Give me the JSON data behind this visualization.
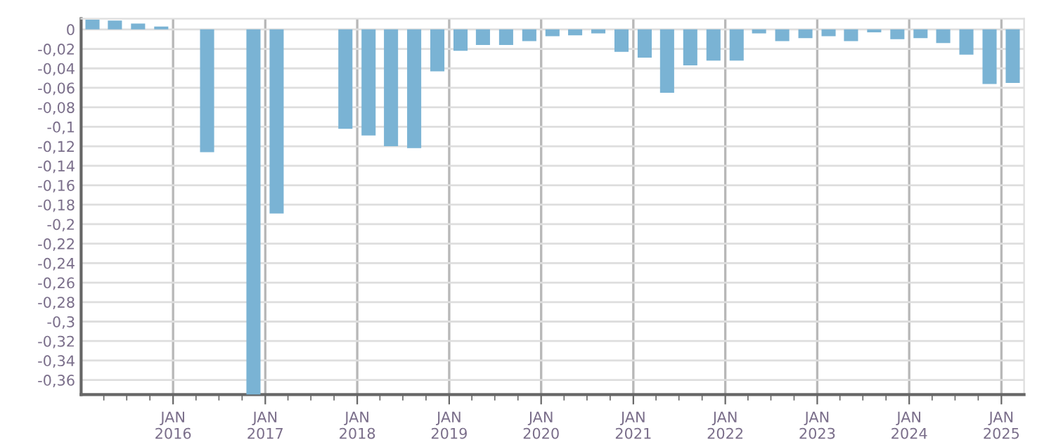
{
  "chart_data": {
    "type": "bar",
    "x": [
      "2015-02-15",
      "2015-05-15",
      "2015-08-15",
      "2015-11-15",
      "2016-05-15",
      "2016-11-15",
      "2017-02-15",
      "2017-11-15",
      "2018-02-15",
      "2018-05-15",
      "2018-08-15",
      "2018-11-15",
      "2019-02-15",
      "2019-05-15",
      "2019-08-15",
      "2019-11-15",
      "2020-02-15",
      "2020-05-15",
      "2020-08-15",
      "2020-11-15",
      "2021-02-15",
      "2021-05-15",
      "2021-08-15",
      "2021-11-15",
      "2022-02-15",
      "2022-05-15",
      "2022-08-15",
      "2022-11-15",
      "2023-02-15",
      "2023-05-15",
      "2023-08-15",
      "2023-11-15",
      "2024-02-15",
      "2024-05-15",
      "2024-08-15",
      "2024-11-15",
      "2025-02-15"
    ],
    "values": [
      0.01,
      0.009,
      0.006,
      0.003,
      -0.126,
      -0.375,
      -0.189,
      -0.102,
      -0.109,
      -0.12,
      -0.122,
      -0.043,
      -0.022,
      -0.016,
      -0.016,
      -0.012,
      -0.007,
      -0.006,
      -0.004,
      -0.023,
      -0.029,
      -0.065,
      -0.037,
      -0.032,
      -0.032,
      -0.004,
      -0.012,
      -0.009,
      -0.007,
      -0.012,
      -0.003,
      -0.01,
      -0.009,
      -0.014,
      -0.026,
      -0.056,
      -0.055
    ],
    "color": "#7ab3d4",
    "xlim": [
      "2015-01-01",
      "2025-04-01"
    ],
    "ylim": [
      -0.375,
      0.011
    ],
    "xticks": [
      {
        "value": "2015-04-01",
        "label": null
      },
      {
        "value": "2015-07-01",
        "label": null
      },
      {
        "value": "2015-10-01",
        "label": null
      },
      {
        "value": "2016-01-01",
        "label": "JAN\n2016"
      },
      {
        "value": "2016-04-01",
        "label": null
      },
      {
        "value": "2016-07-01",
        "label": null
      },
      {
        "value": "2016-10-01",
        "label": null
      },
      {
        "value": "2017-01-01",
        "label": "JAN\n2017"
      },
      {
        "value": "2017-04-01",
        "label": null
      },
      {
        "value": "2017-07-01",
        "label": null
      },
      {
        "value": "2017-10-01",
        "label": null
      },
      {
        "value": "2018-01-01",
        "label": "JAN\n2018"
      },
      {
        "value": "2018-04-01",
        "label": null
      },
      {
        "value": "2018-07-01",
        "label": null
      },
      {
        "value": "2018-10-01",
        "label": null
      },
      {
        "value": "2019-01-01",
        "label": "JAN\n2019"
      },
      {
        "value": "2019-04-01",
        "label": null
      },
      {
        "value": "2019-07-01",
        "label": null
      },
      {
        "value": "2019-10-01",
        "label": null
      },
      {
        "value": "2020-01-01",
        "label": "JAN\n2020"
      },
      {
        "value": "2020-04-01",
        "label": null
      },
      {
        "value": "2020-07-01",
        "label": null
      },
      {
        "value": "2020-10-01",
        "label": null
      },
      {
        "value": "2021-01-01",
        "label": "JAN\n2021"
      },
      {
        "value": "2021-04-01",
        "label": null
      },
      {
        "value": "2021-07-01",
        "label": null
      },
      {
        "value": "2021-10-01",
        "label": null
      },
      {
        "value": "2022-01-01",
        "label": "JAN\n2022"
      },
      {
        "value": "2022-04-01",
        "label": null
      },
      {
        "value": "2022-07-01",
        "label": null
      },
      {
        "value": "2022-10-01",
        "label": null
      },
      {
        "value": "2023-01-01",
        "label": "JAN\n2023"
      },
      {
        "value": "2023-04-01",
        "label": null
      },
      {
        "value": "2023-07-01",
        "label": null
      },
      {
        "value": "2023-10-01",
        "label": null
      },
      {
        "value": "2024-01-01",
        "label": "JAN\n2024"
      },
      {
        "value": "2024-04-01",
        "label": null
      },
      {
        "value": "2024-07-01",
        "label": null
      },
      {
        "value": "2024-10-01",
        "label": null
      },
      {
        "value": "2025-01-01",
        "label": "JAN\n2025"
      }
    ],
    "yticks": [
      0,
      {
        "value": -0.02,
        "label": "-0,02"
      },
      {
        "value": -0.04,
        "label": "-0,04"
      },
      {
        "value": -0.06,
        "label": "-0,06"
      },
      {
        "value": -0.08,
        "label": "-0,08"
      },
      {
        "value": -0.1,
        "label": "-0,1"
      },
      {
        "value": -0.12,
        "label": "-0,12"
      },
      {
        "value": -0.14,
        "label": "-0,14"
      },
      {
        "value": -0.16,
        "label": "-0,16"
      },
      {
        "value": -0.18,
        "label": "-0,18"
      },
      {
        "value": -0.2,
        "label": "-0,2"
      },
      {
        "value": -0.22,
        "label": "-0,22"
      },
      {
        "value": -0.24,
        "label": "-0,24"
      },
      {
        "value": -0.26,
        "label": "-0,26"
      },
      {
        "value": -0.28,
        "label": "-0,28"
      },
      {
        "value": -0.3,
        "label": "-0,3"
      },
      {
        "value": -0.32,
        "label": "-0,32"
      },
      {
        "value": -0.34,
        "label": "-0,34"
      },
      {
        "value": -0.36,
        "label": "-0,36"
      }
    ],
    "grid": true
  }
}
